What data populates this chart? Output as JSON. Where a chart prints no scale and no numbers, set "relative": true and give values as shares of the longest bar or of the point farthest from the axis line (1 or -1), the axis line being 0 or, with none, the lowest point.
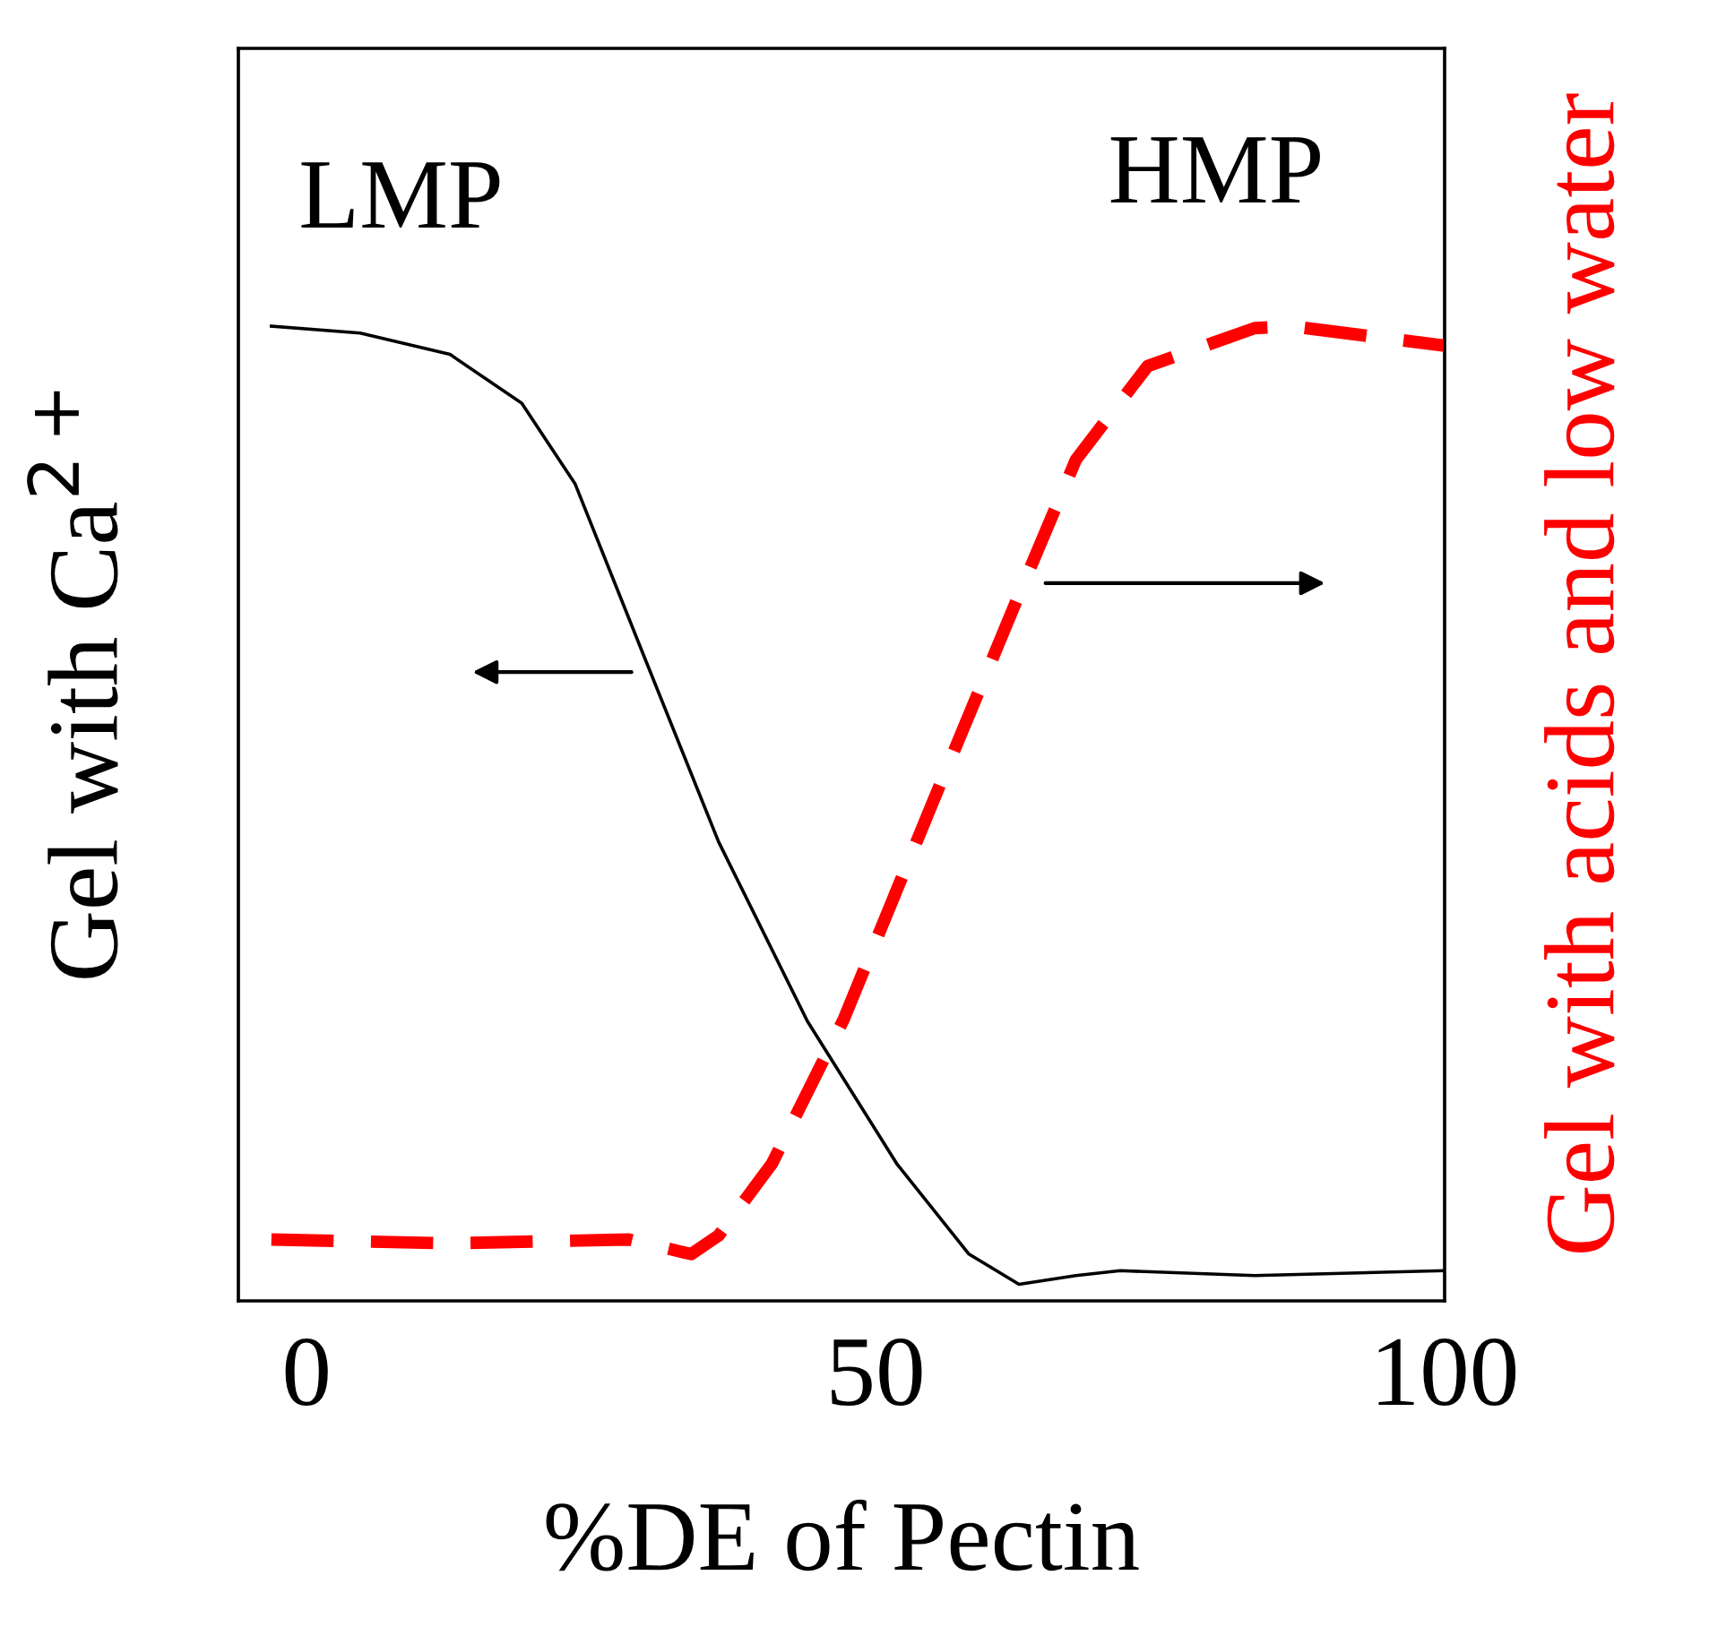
{
  "chart_data": {
    "type": "line",
    "relative": true,
    "xlabel": "%DE of Pectin",
    "ylabel": "Gel with Ca$^{2+}$",
    "y2label": "Gel with acids and low water",
    "xlim": [
      -6,
      100
    ],
    "xticks": [
      0,
      50,
      100
    ],
    "tick_labels": "x",
    "grid": false,
    "legend": false,
    "annotations": [
      "LMP",
      "HMP"
    ],
    "series": [
      {
        "color": "#000000",
        "line_style": "solid",
        "x": [
          -3.1,
          4.7,
          12.6,
          18.9,
          23.6,
          29.9,
          36.2,
          44.0,
          51.9,
          58.2,
          62.6,
          67.6,
          71.5,
          83.3,
          100
        ],
        "values": [
          1.0,
          0.993,
          0.971,
          0.921,
          0.838,
          0.654,
          0.471,
          0.287,
          0.14,
          0.048,
          0.017,
          0.026,
          0.031,
          0.026,
          0.031
        ]
      },
      {
        "color": "#ff0000",
        "line_style": "dashed",
        "axis": "y2",
        "x": [
          -3.1,
          12.6,
          28.3,
          33.8,
          36.2,
          40.9,
          47.2,
          55.0,
          62.9,
          67.6,
          73.9,
          83.3,
          86.5,
          100
        ],
        "values": [
          0.063,
          0.059,
          0.063,
          0.048,
          0.067,
          0.141,
          0.289,
          0.511,
          0.733,
          0.863,
          0.959,
          0.998,
          1.0,
          0.98
        ]
      }
    ]
  }
}
